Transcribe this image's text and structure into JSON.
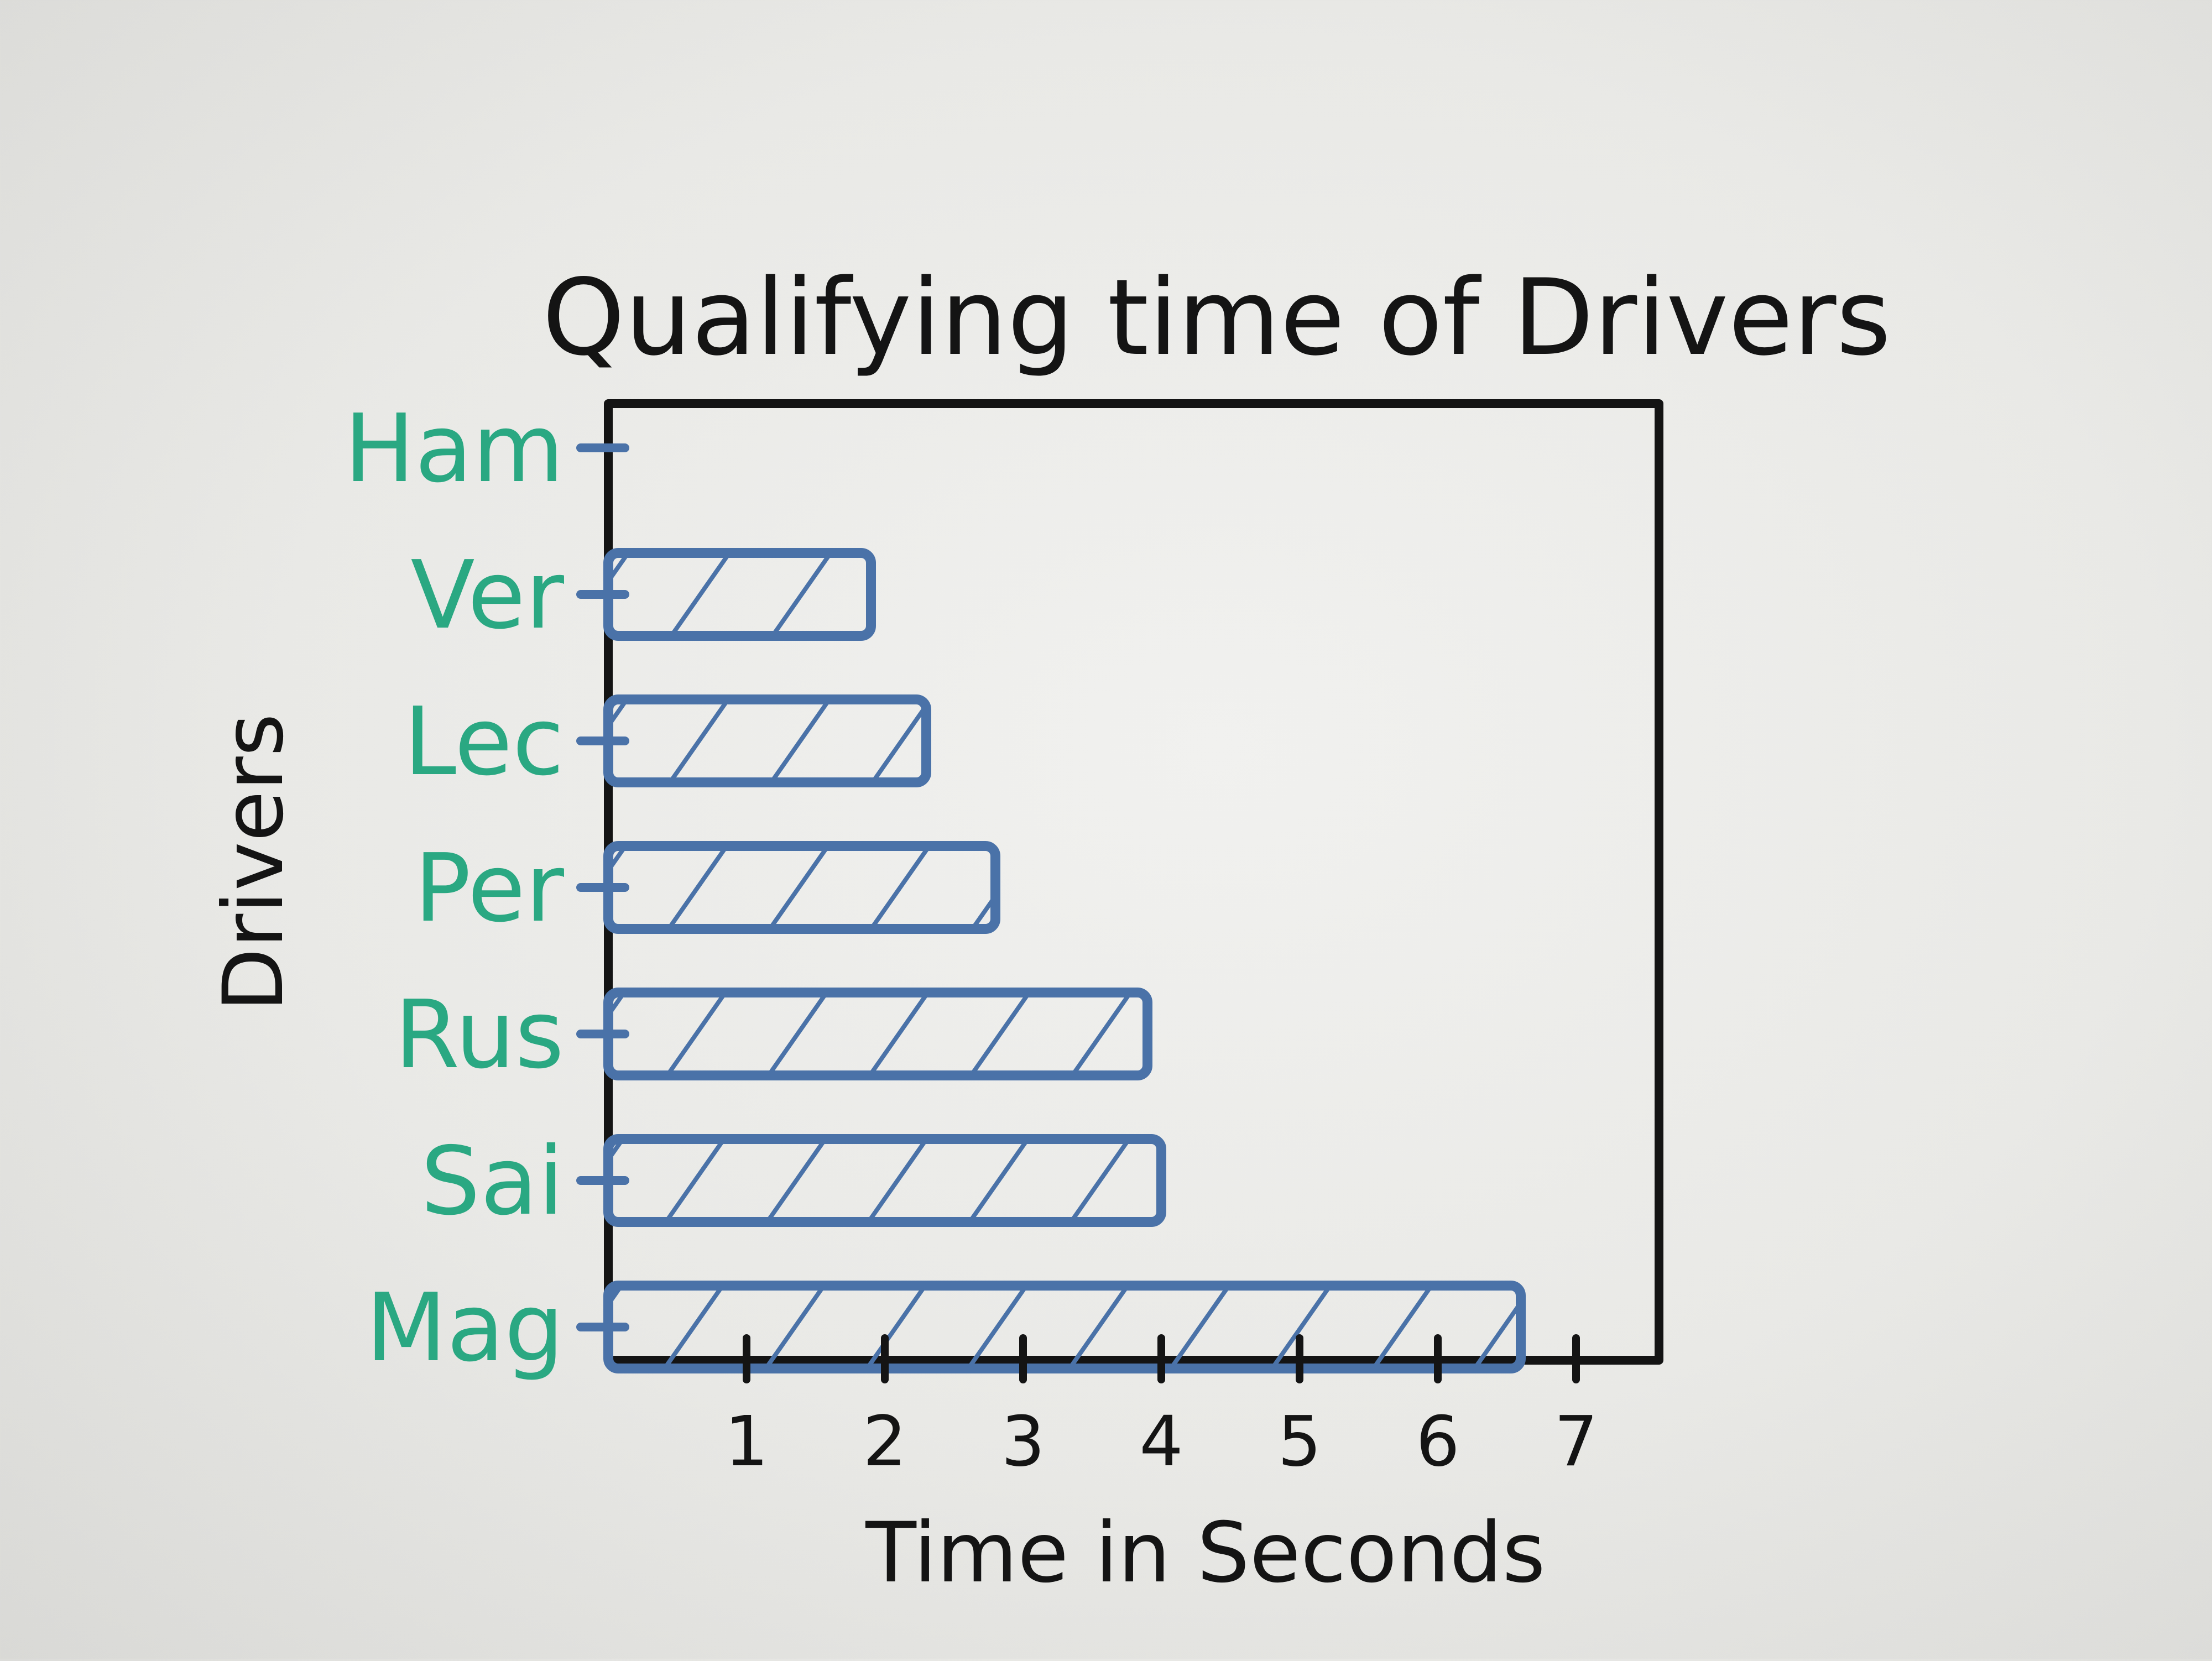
{
  "chart_data": {
    "type": "bar",
    "orientation": "horizontal",
    "title": "Qualifying time of Drivers",
    "xlabel": "Time in Seconds",
    "ylabel": "Drivers",
    "categories": [
      "Ham",
      "Ver",
      "Lec",
      "Per",
      "Rus",
      "Sai",
      "Mag"
    ],
    "values": [
      0,
      1.9,
      2.3,
      2.8,
      3.9,
      4.0,
      6.6
    ],
    "xticks": [
      "1",
      "2",
      "3",
      "4",
      "5",
      "6",
      "7"
    ],
    "xtick_values": [
      1,
      2,
      3,
      4,
      5,
      6,
      7
    ],
    "xlim": [
      0,
      7.6
    ],
    "grid": false,
    "bar_color": "#4a72a8",
    "label_color": "#2aa882",
    "ink_color": "#141414"
  }
}
